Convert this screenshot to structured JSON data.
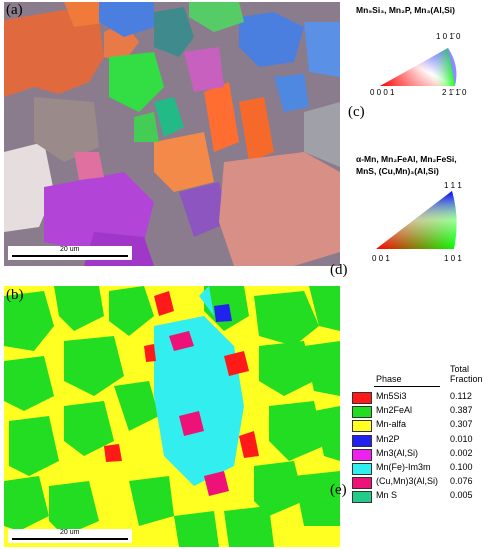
{
  "panels": {
    "a": "(a)",
    "b": "(b)",
    "c": "(c)",
    "d": "(d)",
    "e": "(e)"
  },
  "scalebar": {
    "label": "20 um"
  },
  "ipf_hex": {
    "title": "Mn₅Si₃, Mn₂P, Mn₃(Al,Si)",
    "corner_left": "0 0 0 1",
    "corner_top": "1 0 1̄ 0",
    "corner_right": "2 1̄ 1̄ 0"
  },
  "ipf_cubic": {
    "title_line1": "α-Mn, Mn₂FeAl, Mn₂FeSi,",
    "title_line2": "MnS, (Cu,Mn)₃(Al,Si)",
    "corner_left": "0 0 1",
    "corner_top": "1 1 1",
    "corner_right": "1 0 1"
  },
  "legend": {
    "header_phase": "Phase",
    "header_total": "Total",
    "header_fraction": "Fraction",
    "rows": [
      {
        "name": "Mn5Si3",
        "fraction": "0.112",
        "color": "#ff1a1a"
      },
      {
        "name": "Mn2FeAl",
        "fraction": "0.387",
        "color": "#22dd22"
      },
      {
        "name": "Mn-alfa",
        "fraction": "0.307",
        "color": "#ffff22"
      },
      {
        "name": "Mn2P",
        "fraction": "0.010",
        "color": "#2222ee"
      },
      {
        "name": "Mn3(Al,Si)",
        "fraction": "0.002",
        "color": "#ee22ee"
      },
      {
        "name": "Mn(Fe)-Im3m",
        "fraction": "0.100",
        "color": "#33eeee"
      },
      {
        "name": "(Cu,Mn)3(Al,Si)",
        "fraction": "0.076",
        "color": "#ee1177"
      },
      {
        "name": "Mn S",
        "fraction": "0.005",
        "color": "#22cc88"
      }
    ]
  },
  "colors": {
    "ipf_orange": "#e06a3e",
    "ipf_green": "#33dd44",
    "ipf_blue": "#4a7fe0",
    "ipf_magenta": "#b344d8",
    "ipf_pink": "#d88f86",
    "ipf_grey": "#9a8a8a"
  }
}
